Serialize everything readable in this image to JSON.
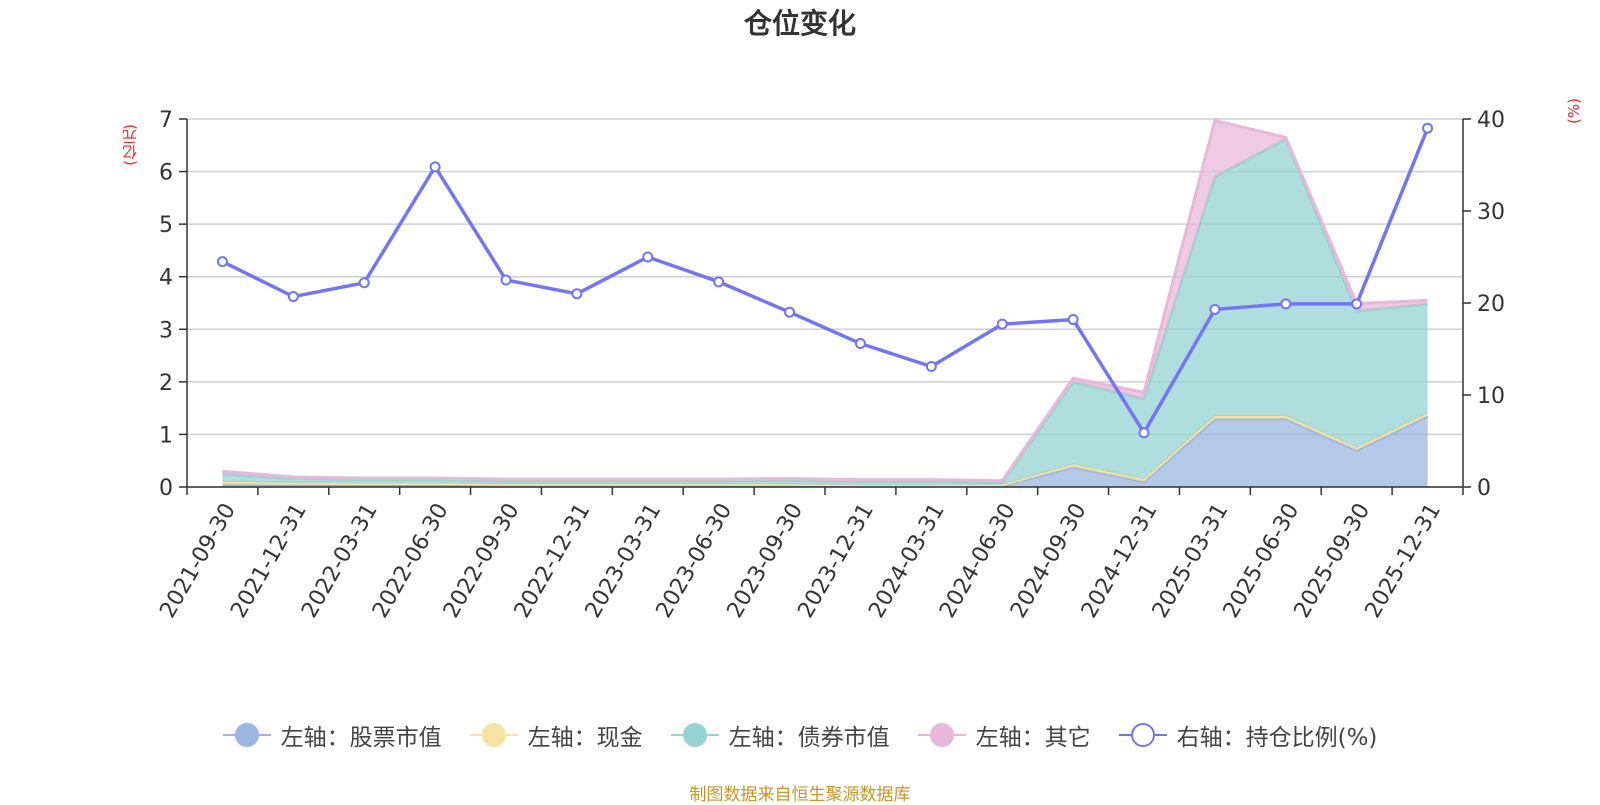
{
  "title": "仓位变化",
  "units": {
    "left": "(亿元)",
    "right": "(%)"
  },
  "source": "制图数据来自恒生聚源数据库",
  "chart_data": {
    "type": "area",
    "categories": [
      "2021-09-30",
      "2021-12-31",
      "2022-03-31",
      "2022-06-30",
      "2022-09-30",
      "2022-12-31",
      "2023-03-31",
      "2023-06-30",
      "2023-09-30",
      "2023-12-31",
      "2024-03-31",
      "2024-06-30",
      "2024-09-30",
      "2024-12-31",
      "2025-03-31",
      "2025-06-30",
      "2025-09-30",
      "2025-12-31"
    ],
    "ylim_left": [
      0,
      7
    ],
    "yticks_left": [
      0,
      1,
      2,
      3,
      4,
      5,
      6,
      7
    ],
    "ylim_right": [
      0,
      40
    ],
    "yticks_right": [
      0,
      10,
      20,
      30,
      40
    ],
    "grid": true,
    "legend_position": "bottom",
    "series": [
      {
        "name": "左轴：股票市值",
        "axis": "left",
        "kind": "stacked-area",
        "color": "#9bb6e0",
        "values": [
          0.05,
          0.04,
          0.04,
          0.04,
          0.03,
          0.03,
          0.03,
          0.03,
          0.03,
          0.02,
          0.02,
          0.02,
          0.38,
          0.1,
          1.3,
          1.3,
          0.7,
          1.35
        ]
      },
      {
        "name": "左轴：现金",
        "axis": "left",
        "kind": "stacked-area",
        "color": "#f6e3a1",
        "values": [
          0.05,
          0.04,
          0.03,
          0.03,
          0.02,
          0.02,
          0.02,
          0.02,
          0.02,
          0.02,
          0.02,
          0.02,
          0.05,
          0.05,
          0.05,
          0.05,
          0.05,
          0.05
        ]
      },
      {
        "name": "左轴：债券市值",
        "axis": "left",
        "kind": "stacked-area",
        "color": "#96d3d3",
        "values": [
          0.15,
          0.08,
          0.07,
          0.07,
          0.07,
          0.07,
          0.07,
          0.07,
          0.08,
          0.07,
          0.07,
          0.05,
          1.57,
          1.53,
          4.55,
          5.27,
          2.6,
          2.08
        ]
      },
      {
        "name": "左轴：其它",
        "axis": "left",
        "kind": "stacked-area",
        "color": "#e8b8da",
        "values": [
          0.05,
          0.03,
          0.03,
          0.03,
          0.03,
          0.03,
          0.03,
          0.03,
          0.03,
          0.03,
          0.03,
          0.03,
          0.07,
          0.12,
          1.07,
          0.03,
          0.14,
          0.07
        ]
      },
      {
        "name": "右轴：持仓比例(%)",
        "axis": "right",
        "kind": "line",
        "color": "#7475f0",
        "values": [
          24.5,
          20.7,
          22.2,
          34.8,
          22.5,
          21.0,
          25.0,
          22.3,
          19.0,
          15.6,
          13.1,
          17.7,
          18.2,
          5.9,
          19.3,
          19.9,
          19.9,
          39.0
        ]
      }
    ]
  }
}
